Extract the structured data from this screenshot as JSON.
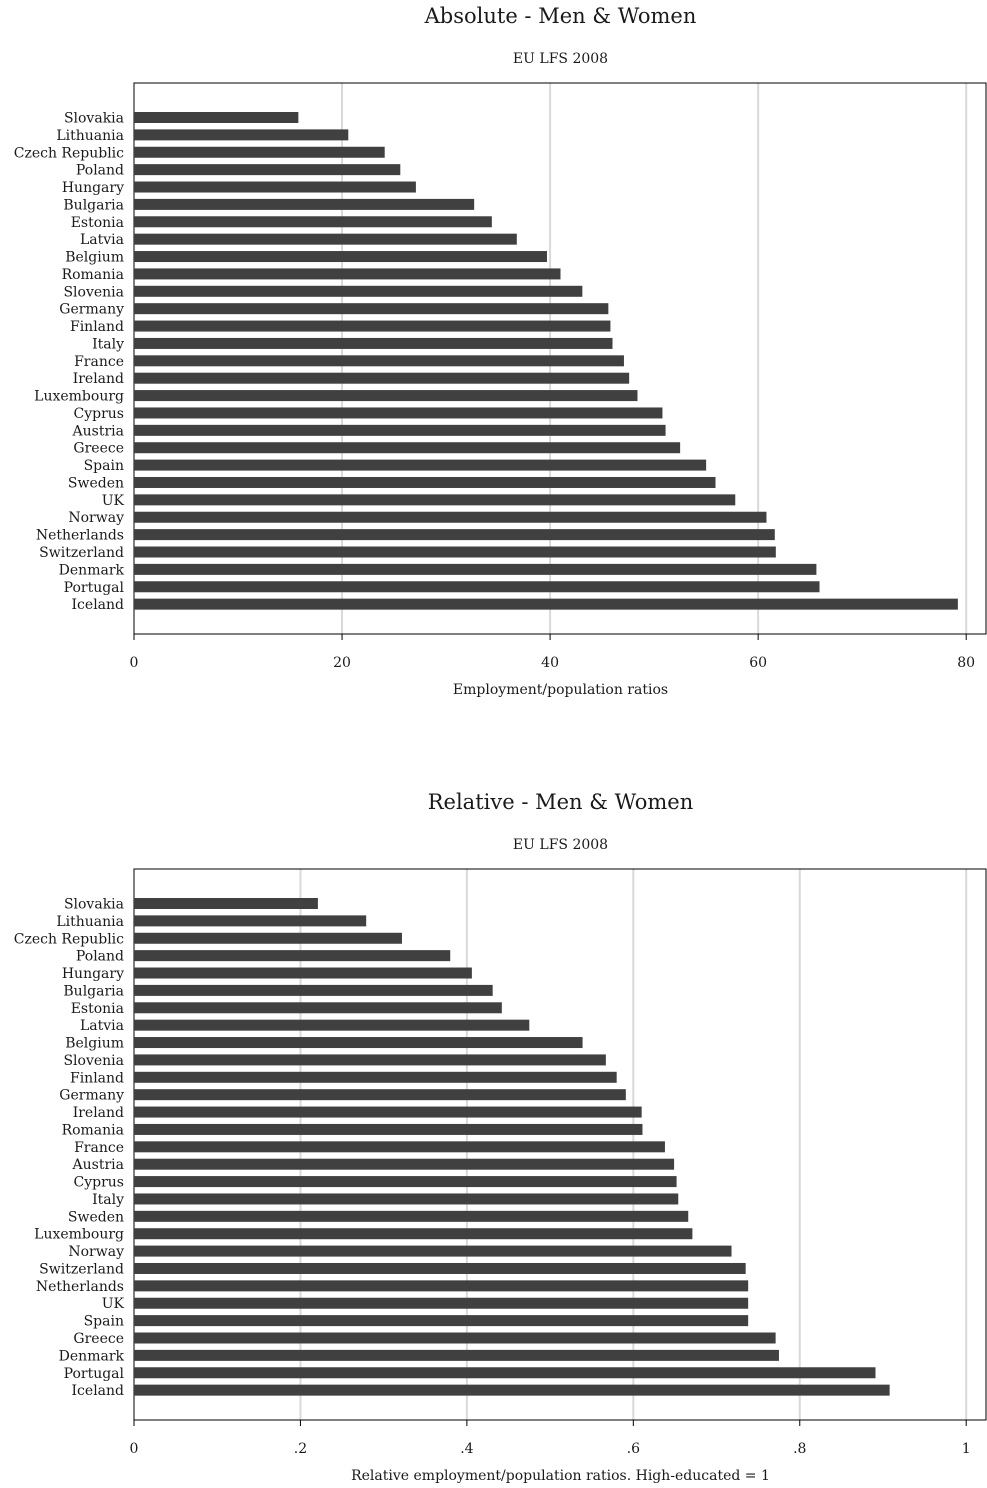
{
  "charts": [
    {
      "title": "Absolute - Men & Women",
      "subtitle": "EU LFS 2008",
      "xlabel": "Employment/population ratios"
    },
    {
      "title": "Relative - Men & Women",
      "subtitle": "EU LFS 2008",
      "xlabel": "Relative employment/population ratios. High-educated = 1"
    }
  ],
  "colors": {
    "bar": "#404040",
    "grid": "#d9d9d9",
    "frame": "#000000"
  },
  "chart_data": [
    {
      "type": "bar",
      "orientation": "horizontal",
      "title": "Absolute - Men & Women",
      "subtitle": "EU LFS 2008",
      "xlabel": "Employment/population ratios",
      "ylabel": "",
      "xlim": [
        0,
        82
      ],
      "xticks": [
        0,
        20,
        40,
        60,
        80
      ],
      "xtick_labels": [
        "0",
        "20",
        "40",
        "60",
        "80"
      ],
      "grid": true,
      "categories": [
        "Slovakia",
        "Lithuania",
        "Czech Republic",
        "Poland",
        "Hungary",
        "Bulgaria",
        "Estonia",
        "Latvia",
        "Belgium",
        "Romania",
        "Slovenia",
        "Germany",
        "Finland",
        "Italy",
        "France",
        "Ireland",
        "Luxembourg",
        "Cyprus",
        "Austria",
        "Greece",
        "Spain",
        "Sweden",
        "UK",
        "Norway",
        "Netherlands",
        "Switzerland",
        "Denmark",
        "Portugal",
        "Iceland"
      ],
      "values": [
        15.8,
        20.6,
        24.1,
        25.6,
        27.1,
        32.7,
        34.4,
        36.8,
        39.7,
        41.0,
        43.1,
        45.6,
        45.8,
        46.0,
        47.1,
        47.6,
        48.4,
        50.8,
        51.1,
        52.5,
        55.0,
        55.9,
        57.8,
        60.8,
        61.6,
        61.7,
        65.6,
        65.9,
        79.2
      ]
    },
    {
      "type": "bar",
      "orientation": "horizontal",
      "title": "Relative - Men & Women",
      "subtitle": "EU LFS 2008",
      "xlabel": "Relative employment/population ratios. High-educated = 1",
      "ylabel": "",
      "xlim": [
        0,
        1.025
      ],
      "xticks": [
        0,
        0.2,
        0.4,
        0.6,
        0.8,
        1
      ],
      "xtick_labels": [
        "0",
        ".2",
        ".4",
        ".6",
        ".8",
        "1"
      ],
      "grid": true,
      "categories": [
        "Slovakia",
        "Lithuania",
        "Czech Republic",
        "Poland",
        "Hungary",
        "Bulgaria",
        "Estonia",
        "Latvia",
        "Belgium",
        "Slovenia",
        "Finland",
        "Germany",
        "Ireland",
        "Romania",
        "France",
        "Austria",
        "Cyprus",
        "Italy",
        "Sweden",
        "Luxembourg",
        "Norway",
        "Switzerland",
        "Netherlands",
        "UK",
        "Spain",
        "Greece",
        "Denmark",
        "Portugal",
        "Iceland"
      ],
      "values": [
        0.221,
        0.279,
        0.322,
        0.38,
        0.406,
        0.431,
        0.442,
        0.475,
        0.539,
        0.567,
        0.58,
        0.591,
        0.61,
        0.611,
        0.638,
        0.649,
        0.652,
        0.654,
        0.666,
        0.671,
        0.718,
        0.735,
        0.738,
        0.738,
        0.738,
        0.771,
        0.775,
        0.891,
        0.908
      ]
    }
  ]
}
